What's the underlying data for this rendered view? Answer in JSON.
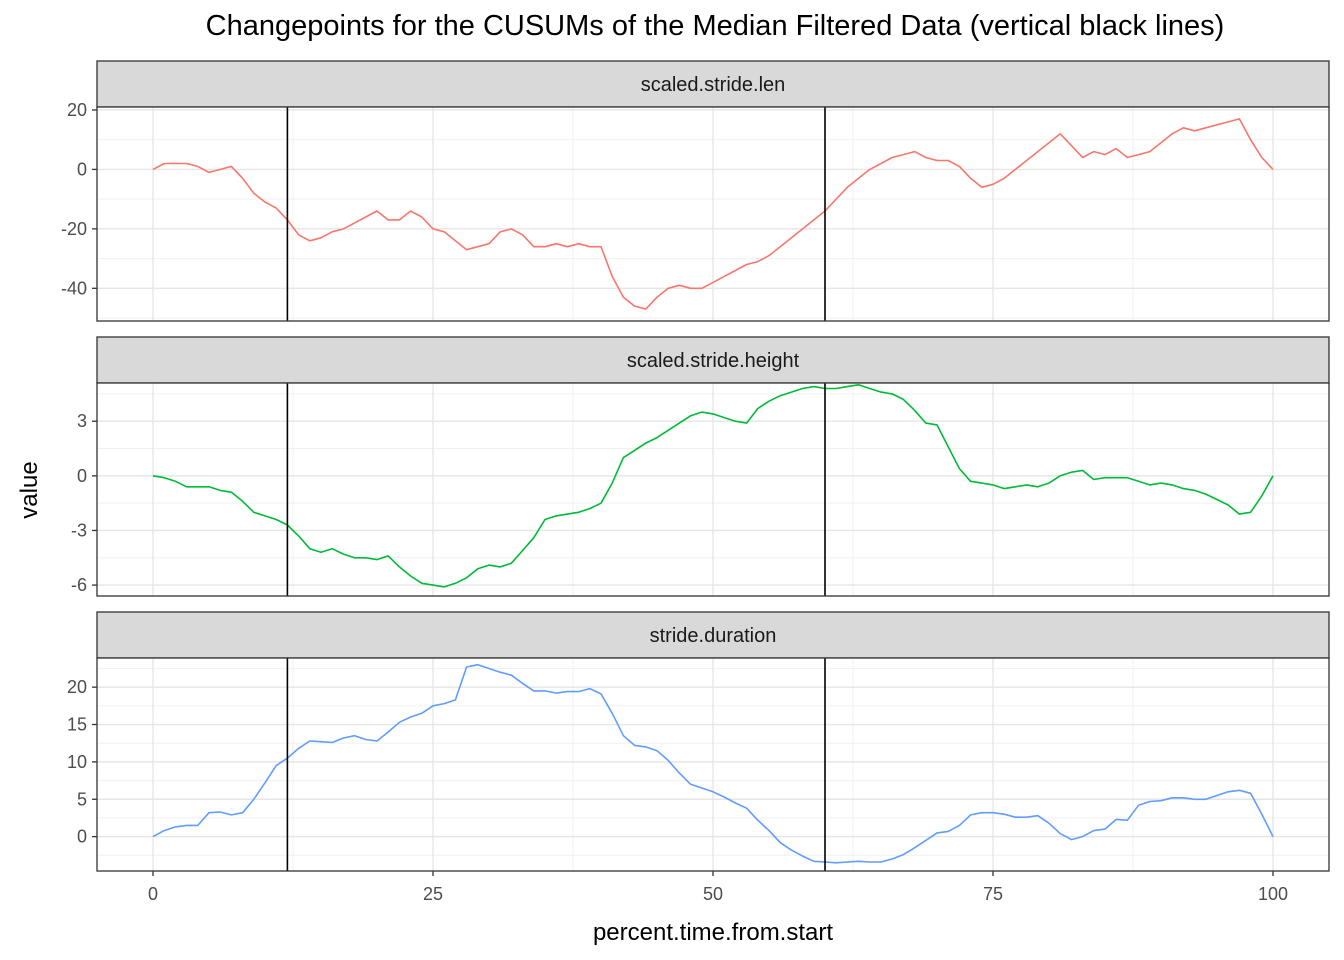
{
  "chart_data": {
    "type": "line",
    "title": "Changepoints for the CUSUMs of the Median Filtered Data (vertical black lines)",
    "xlabel": "percent.time.from.start",
    "ylabel": "value",
    "xlim": [
      -5,
      105
    ],
    "x_ticks": [
      0,
      25,
      50,
      75,
      100
    ],
    "grid": true,
    "changepoints": [
      12,
      60
    ],
    "panels": [
      {
        "name": "scaled.stride.len",
        "color": "#F8766D",
        "ylim": [
          -51,
          21
        ],
        "y_ticks": [
          20,
          0,
          -20,
          -40
        ],
        "x": [
          0,
          1,
          2,
          3,
          4,
          5,
          6,
          7,
          8,
          9,
          10,
          11,
          12,
          13,
          14,
          15,
          16,
          17,
          18,
          19,
          20,
          21,
          22,
          23,
          24,
          25,
          26,
          27,
          28,
          29,
          30,
          31,
          32,
          33,
          34,
          35,
          36,
          37,
          38,
          39,
          40,
          41,
          42,
          43,
          44,
          45,
          46,
          47,
          48,
          49,
          50,
          51,
          52,
          53,
          54,
          55,
          56,
          57,
          58,
          59,
          60,
          61,
          62,
          63,
          64,
          65,
          66,
          67,
          68,
          69,
          70,
          71,
          72,
          73,
          74,
          75,
          76,
          77,
          78,
          79,
          80,
          81,
          82,
          83,
          84,
          85,
          86,
          87,
          88,
          89,
          90,
          91,
          92,
          93,
          94,
          95,
          96,
          97,
          98,
          99,
          100
        ],
        "y": [
          0,
          2,
          2,
          2,
          1,
          -1,
          0,
          1,
          -3,
          -8,
          -11,
          -13,
          -17,
          -22,
          -24,
          -23,
          -21,
          -20,
          -18,
          -16,
          -14,
          -17,
          -17,
          -14,
          -16,
          -20,
          -21,
          -24,
          -27,
          -26,
          -25,
          -21,
          -20,
          -22,
          -26,
          -26,
          -25,
          -26,
          -25,
          -26,
          -26,
          -36,
          -43,
          -46,
          -47,
          -43,
          -40,
          -39,
          -40,
          -40,
          -38,
          -36,
          -34,
          -32,
          -31,
          -29,
          -26,
          -23,
          -20,
          -17,
          -14,
          -10,
          -6,
          -3,
          0,
          2,
          4,
          5,
          6,
          4,
          3,
          3,
          1,
          -3,
          -6,
          -5,
          -3,
          0,
          3,
          6,
          9,
          12,
          8,
          4,
          6,
          5,
          7,
          4,
          5,
          6,
          9,
          12,
          14,
          13,
          14,
          15,
          16,
          17,
          10,
          4,
          0
        ]
      },
      {
        "name": "scaled.stride.height",
        "color": "#00BA38",
        "ylim": [
          -6.6,
          5.1
        ],
        "y_ticks": [
          3,
          0,
          -3,
          -6
        ],
        "x": [
          0,
          1,
          2,
          3,
          4,
          5,
          6,
          7,
          8,
          9,
          10,
          11,
          12,
          13,
          14,
          15,
          16,
          17,
          18,
          19,
          20,
          21,
          22,
          23,
          24,
          25,
          26,
          27,
          28,
          29,
          30,
          31,
          32,
          33,
          34,
          35,
          36,
          37,
          38,
          39,
          40,
          41,
          42,
          43,
          44,
          45,
          46,
          47,
          48,
          49,
          50,
          51,
          52,
          53,
          54,
          55,
          56,
          57,
          58,
          59,
          60,
          61,
          62,
          63,
          64,
          65,
          66,
          67,
          68,
          69,
          70,
          71,
          72,
          73,
          74,
          75,
          76,
          77,
          78,
          79,
          80,
          81,
          82,
          83,
          84,
          85,
          86,
          87,
          88,
          89,
          90,
          91,
          92,
          93,
          94,
          95,
          96,
          97,
          98,
          99,
          100
        ],
        "y": [
          0,
          -0.1,
          -0.3,
          -0.6,
          -0.6,
          -0.6,
          -0.8,
          -0.9,
          -1.4,
          -2.0,
          -2.2,
          -2.4,
          -2.7,
          -3.3,
          -4.0,
          -4.2,
          -4.0,
          -4.3,
          -4.5,
          -4.5,
          -4.6,
          -4.4,
          -5.0,
          -5.5,
          -5.9,
          -6.0,
          -6.1,
          -5.9,
          -5.6,
          -5.1,
          -4.9,
          -5.0,
          -4.8,
          -4.1,
          -3.4,
          -2.4,
          -2.2,
          -2.1,
          -2.0,
          -1.8,
          -1.5,
          -0.4,
          1.0,
          1.4,
          1.8,
          2.1,
          2.5,
          2.9,
          3.3,
          3.5,
          3.4,
          3.2,
          3.0,
          2.9,
          3.7,
          4.1,
          4.4,
          4.6,
          4.8,
          4.9,
          4.8,
          4.8,
          4.9,
          5.0,
          4.8,
          4.6,
          4.5,
          4.2,
          3.6,
          2.9,
          2.8,
          1.6,
          0.4,
          -0.3,
          -0.4,
          -0.5,
          -0.7,
          -0.6,
          -0.5,
          -0.6,
          -0.4,
          0.0,
          0.2,
          0.3,
          -0.2,
          -0.1,
          -0.1,
          -0.1,
          -0.3,
          -0.5,
          -0.4,
          -0.5,
          -0.7,
          -0.8,
          -1.0,
          -1.3,
          -1.6,
          -2.1,
          -2.0,
          -1.1,
          0.0
        ]
      },
      {
        "name": "stride.duration",
        "color": "#619CFF",
        "ylim": [
          -4.6,
          23.9
        ],
        "y_ticks": [
          20,
          15,
          10,
          5,
          0
        ],
        "x": [
          0,
          1,
          2,
          3,
          4,
          5,
          6,
          7,
          8,
          9,
          10,
          11,
          12,
          13,
          14,
          15,
          16,
          17,
          18,
          19,
          20,
          21,
          22,
          23,
          24,
          25,
          26,
          27,
          28,
          29,
          30,
          31,
          32,
          33,
          34,
          35,
          36,
          37,
          38,
          39,
          40,
          41,
          42,
          43,
          44,
          45,
          46,
          47,
          48,
          49,
          50,
          51,
          52,
          53,
          54,
          55,
          56,
          57,
          58,
          59,
          60,
          61,
          62,
          63,
          64,
          65,
          66,
          67,
          68,
          69,
          70,
          71,
          72,
          73,
          74,
          75,
          76,
          77,
          78,
          79,
          80,
          81,
          82,
          83,
          84,
          85,
          86,
          87,
          88,
          89,
          90,
          91,
          92,
          93,
          94,
          95,
          96,
          97,
          98,
          99,
          100
        ],
        "y": [
          0,
          0.8,
          1.3,
          1.5,
          1.5,
          3.2,
          3.3,
          2.9,
          3.2,
          5.0,
          7.2,
          9.5,
          10.5,
          11.8,
          12.8,
          12.7,
          12.6,
          13.2,
          13.5,
          13.0,
          12.8,
          14.0,
          15.3,
          16.0,
          16.5,
          17.5,
          17.8,
          18.3,
          22.7,
          23.0,
          22.5,
          22.0,
          21.6,
          20.5,
          19.5,
          19.5,
          19.2,
          19.4,
          19.4,
          19.8,
          19.1,
          16.5,
          13.5,
          12.2,
          12.0,
          11.5,
          10.2,
          8.5,
          7.0,
          6.5,
          6.0,
          5.3,
          4.5,
          3.8,
          2.2,
          0.8,
          -0.8,
          -1.8,
          -2.6,
          -3.3,
          -3.4,
          -3.5,
          -3.4,
          -3.3,
          -3.4,
          -3.4,
          -3.0,
          -2.4,
          -1.5,
          -0.5,
          0.5,
          0.7,
          1.5,
          2.9,
          3.2,
          3.2,
          3.0,
          2.6,
          2.6,
          2.8,
          1.8,
          0.4,
          -0.4,
          0.0,
          0.8,
          1.0,
          2.3,
          2.2,
          4.2,
          4.7,
          4.8,
          5.2,
          5.2,
          5.0,
          5.0,
          5.5,
          6.0,
          6.2,
          5.8,
          3.0,
          0.0
        ]
      }
    ]
  }
}
